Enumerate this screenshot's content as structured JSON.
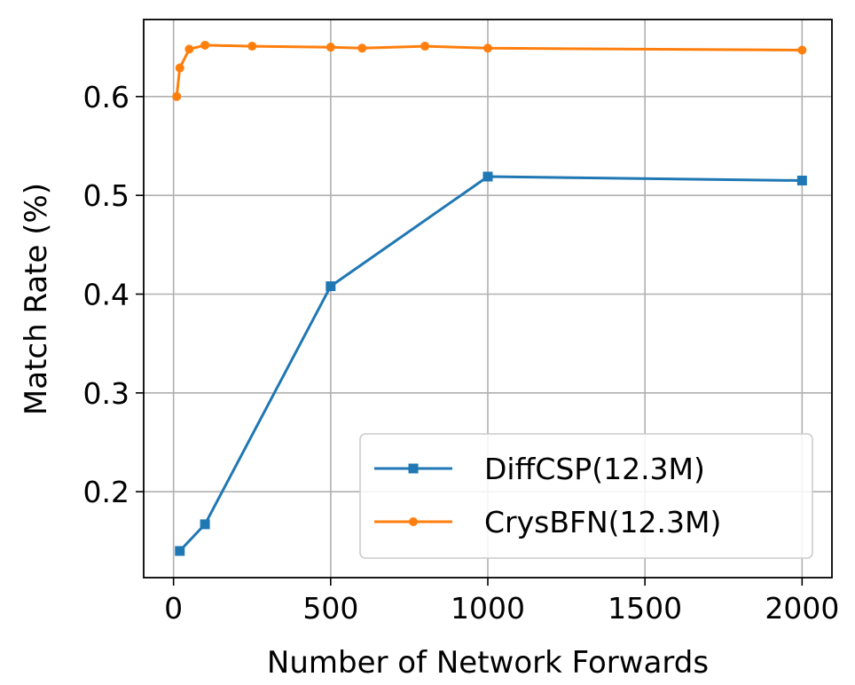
{
  "chart_data": {
    "type": "line",
    "title": "",
    "xlabel": "Number of Network Forwards",
    "ylabel": "Match Rate (%)",
    "xlim": [
      -95,
      2095
    ],
    "ylim": [
      0.113,
      0.678
    ],
    "xticks": [
      0,
      500,
      1000,
      1500,
      2000
    ],
    "xtick_labels": [
      "0",
      "500",
      "1000",
      "1500",
      "2000"
    ],
    "yticks": [
      0.2,
      0.3,
      0.4,
      0.5,
      0.6
    ],
    "ytick_labels": [
      "0.2",
      "0.3",
      "0.4",
      "0.5",
      "0.6"
    ],
    "grid": true,
    "legend_position": "lower-right",
    "series": [
      {
        "name": "DiffCSP(12.3M)",
        "color": "#1f77b4",
        "marker": "square",
        "x": [
          20,
          100,
          500,
          1000,
          2000
        ],
        "y": [
          0.14,
          0.167,
          0.408,
          0.519,
          0.515
        ]
      },
      {
        "name": "CrysBFN(12.3M)",
        "color": "#ff7f0e",
        "marker": "circle",
        "x": [
          10,
          20,
          50,
          100,
          250,
          500,
          600,
          800,
          1000,
          2000
        ],
        "y": [
          0.6,
          0.629,
          0.648,
          0.652,
          0.651,
          0.65,
          0.649,
          0.651,
          0.649,
          0.647
        ]
      }
    ]
  }
}
